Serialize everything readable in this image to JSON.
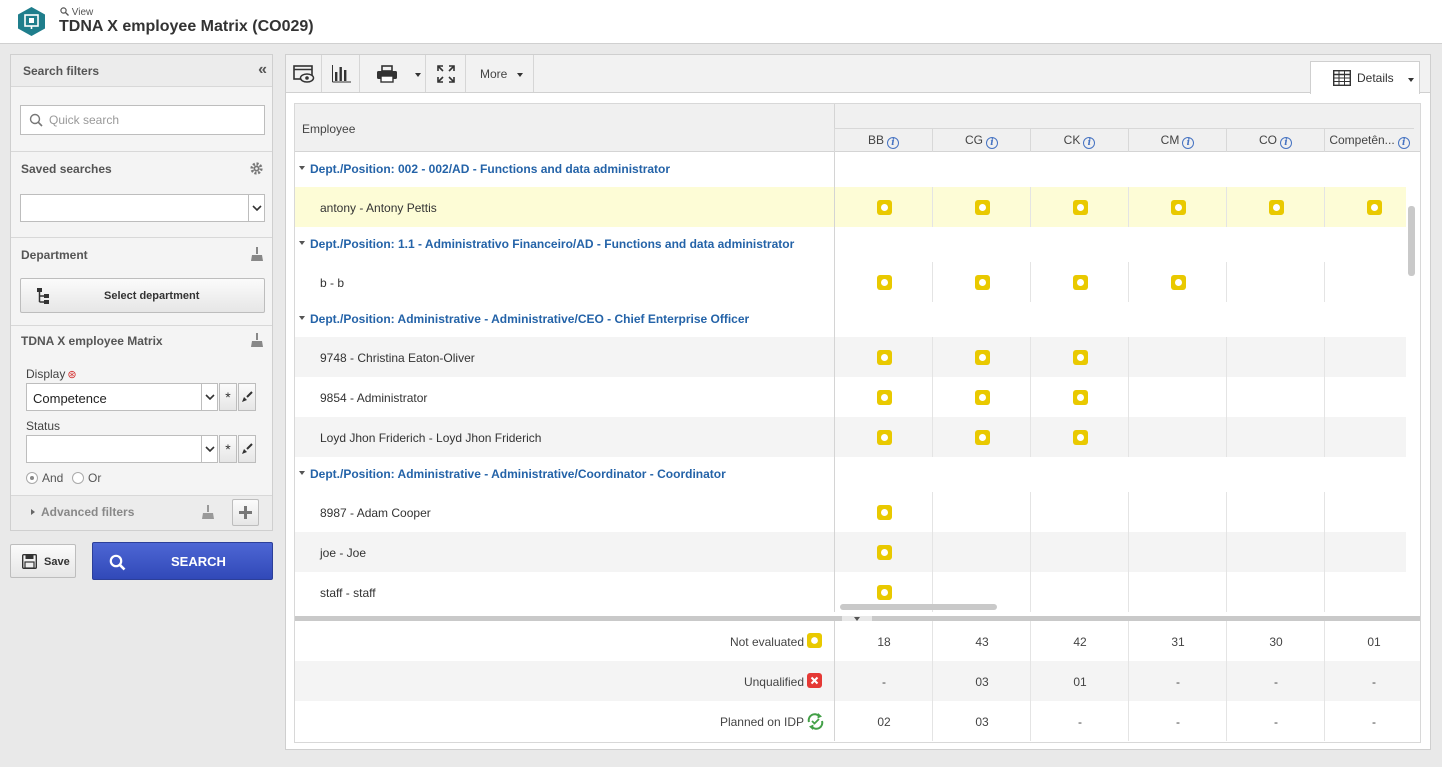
{
  "header": {
    "breadcrumb": "View",
    "title": "TDNA X employee Matrix (CO029)"
  },
  "filters": {
    "title": "Search filters",
    "quick_search_placeholder": "Quick search",
    "saved_searches_label": "Saved searches",
    "department_label": "Department",
    "select_department_label": "Select department",
    "matrix_section_label": "TDNA X employee Matrix",
    "display_label": "Display",
    "display_value": "Competence",
    "status_label": "Status",
    "status_value": "",
    "and_label": "And",
    "or_label": "Or",
    "and_selected": true,
    "advanced_filters_label": "Advanced filters",
    "save_label": "Save",
    "search_label": "SEARCH"
  },
  "toolbar": {
    "more_label": "More",
    "details_label": "Details"
  },
  "grid": {
    "employee_header": "Employee",
    "columns": [
      "BB",
      "CG",
      "CK",
      "CM",
      "CO",
      "Competên..."
    ],
    "groups": [
      {
        "label": "Dept./Position: 002 - 002/AD - Functions and data administrator",
        "rows": [
          {
            "name": "antony - Antony Pettis",
            "marks": [
              1,
              1,
              1,
              1,
              1,
              1
            ],
            "highlight": true
          }
        ]
      },
      {
        "label": "Dept./Position: 1.1 - Administrativo Financeiro/AD - Functions and data administrator",
        "rows": [
          {
            "name": "b - b",
            "marks": [
              1,
              1,
              1,
              1,
              0,
              0
            ],
            "highlight": false
          }
        ]
      },
      {
        "label": "Dept./Position: Administrative - Administrative/CEO - Chief Enterprise Officer",
        "rows": [
          {
            "name": "9748 - Christina Eaton-Oliver",
            "marks": [
              1,
              1,
              1,
              0,
              0,
              0
            ],
            "highlight": false
          },
          {
            "name": "9854 - Administrator",
            "marks": [
              1,
              1,
              1,
              0,
              0,
              0
            ],
            "highlight": false
          },
          {
            "name": "Loyd Jhon Friderich - Loyd Jhon Friderich",
            "marks": [
              1,
              1,
              1,
              0,
              0,
              0
            ],
            "highlight": false
          }
        ]
      },
      {
        "label": "Dept./Position: Administrative - Administrative/Coordinator - Coordinator",
        "rows": [
          {
            "name": "8987 - Adam Cooper",
            "marks": [
              1,
              0,
              0,
              0,
              0,
              0
            ],
            "highlight": false
          },
          {
            "name": "joe - Joe",
            "marks": [
              1,
              0,
              0,
              0,
              0,
              0
            ],
            "highlight": false
          },
          {
            "name": "staff - staff",
            "marks": [
              1,
              0,
              0,
              0,
              0,
              0
            ],
            "highlight": false
          }
        ]
      }
    ]
  },
  "summary": [
    {
      "label": "Not evaluated",
      "icon": "not-evaluated-icon",
      "color": "#e9c900",
      "values": [
        "18",
        "43",
        "42",
        "31",
        "30",
        "01"
      ]
    },
    {
      "label": "Unqualified",
      "icon": "unqualified-icon",
      "color": "#e53935",
      "values": [
        "-",
        "03",
        "01",
        "-",
        "-",
        "-"
      ]
    },
    {
      "label": "Planned on IDP",
      "icon": "planned-idp-icon",
      "color": "#43a047",
      "values": [
        "02",
        "03",
        "-",
        "-",
        "-",
        "-"
      ]
    }
  ]
}
